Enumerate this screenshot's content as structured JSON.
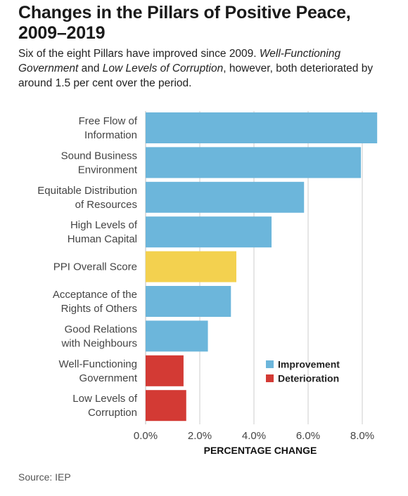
{
  "title": "Changes in the Pillars of Positive Peace, 2009–2019",
  "subtitle": {
    "part1": "Six of the eight Pillars have improved since 2009. ",
    "italic1": "Well-Functioning Government",
    "part2": " and ",
    "italic2": "Low Levels of Corruption",
    "part3": ", however, both deteriorated by around 1.5 per cent over the period."
  },
  "source": "Source: IEP",
  "chart_data": {
    "type": "bar",
    "orientation": "horizontal",
    "title": "Changes in the Pillars of Positive Peace, 2009–2019",
    "xlabel": "PERCENTAGE CHANGE",
    "ylabel": "",
    "xlim": [
      0,
      8.6
    ],
    "x_ticks": [
      0,
      2,
      4,
      6,
      8
    ],
    "x_tick_labels": [
      "0.0%",
      "2.0%",
      "4.0%",
      "6.0%",
      "8.0%"
    ],
    "grid": "vertical",
    "legend_position": "bottom-right",
    "legend": [
      {
        "label": "Improvement",
        "color": "#6cb6db"
      },
      {
        "label": "Deterioration",
        "color": "#d33a34"
      }
    ],
    "categories": [
      [
        "Free Flow of",
        "Information"
      ],
      [
        "Sound Business",
        "Environment"
      ],
      [
        "Equitable Distribution",
        "of Resources"
      ],
      [
        "High Levels of",
        "Human Capital"
      ],
      [
        "PPI Overall Score"
      ],
      [
        "Acceptance of the",
        "Rights of Others"
      ],
      [
        "Good Relations",
        "with Neighbours"
      ],
      [
        "Well-Functioning",
        "Government"
      ],
      [
        "Low Levels of",
        "Corruption"
      ]
    ],
    "values": [
      8.55,
      7.95,
      5.85,
      4.65,
      3.35,
      3.15,
      2.3,
      1.4,
      1.5
    ],
    "bar_colors": [
      "#6cb6db",
      "#6cb6db",
      "#6cb6db",
      "#6cb6db",
      "#f3d14f",
      "#6cb6db",
      "#6cb6db",
      "#d33a34",
      "#d33a34"
    ],
    "value_kind": [
      "improvement",
      "improvement",
      "improvement",
      "improvement",
      "overall",
      "improvement",
      "improvement",
      "deterioration",
      "deterioration"
    ]
  }
}
